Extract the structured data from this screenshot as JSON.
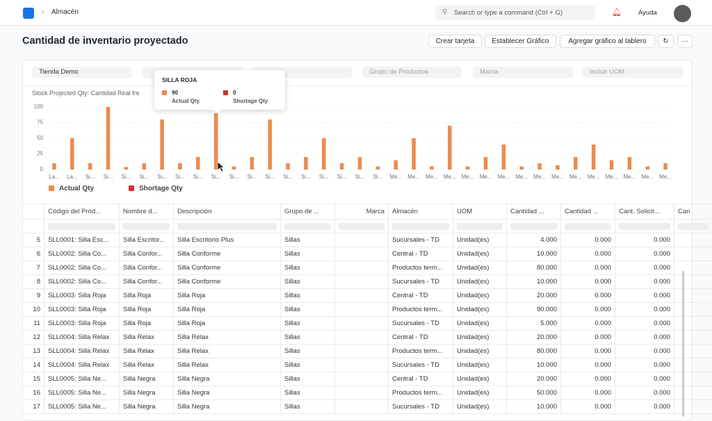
{
  "header": {
    "breadcrumb": "Almacén",
    "search": "Search or type a command (Ctrl + G)",
    "help": "Ayuda"
  },
  "page": {
    "title": "Cantidad de inventario proyectado",
    "buttons": [
      "Crear tarjeta",
      "Establecer Gráfico",
      "Agregar gráfico al tablero"
    ]
  },
  "filters": [
    "Tienda Demo",
    "Grupo de Productos",
    "Marca",
    "Incluir UOM"
  ],
  "chart_data": {
    "type": "bar",
    "subtitle": "Stock Projected Qty: Cantidad Real fre",
    "categories": [
      "La...",
      "La...",
      "Si...",
      "Si...",
      "Si...",
      "Si...",
      "Si...",
      "Si...",
      "Si...",
      "Si...",
      "Si...",
      "Si...",
      "Si...",
      "Si...",
      "Si...",
      "Si...",
      "Si...",
      "Si...",
      "Si...",
      "Me...",
      "Me...",
      "Me...",
      "Me...",
      "Me...",
      "Me...",
      "Me...",
      "Me...",
      "Me...",
      "Me...",
      "Me...",
      "Me...",
      "Me...",
      "Me...",
      "Me...",
      "Me..."
    ],
    "series": [
      {
        "name": "Actual Qty",
        "color": "#ee8a4e",
        "values": [
          10,
          50,
          10,
          100,
          4,
          10,
          80,
          10,
          20,
          90,
          5,
          20,
          80,
          10,
          20,
          50,
          10,
          20,
          5,
          15,
          50,
          5,
          70,
          5,
          20,
          40,
          5,
          10,
          7,
          20,
          40,
          15,
          20,
          5,
          10
        ]
      },
      {
        "name": "Shortage Qty",
        "color": "#d12f2f",
        "values": [
          0,
          0,
          0,
          0,
          0,
          0,
          0,
          0,
          0,
          0,
          0,
          0,
          0,
          0,
          0,
          0,
          0,
          0,
          0,
          0,
          0,
          0,
          0,
          0,
          0,
          0,
          0,
          0,
          0,
          0,
          0,
          0,
          0,
          0,
          0
        ]
      }
    ],
    "ylim": [
      0,
      100
    ],
    "yticks": [
      0,
      25,
      50,
      75,
      100
    ],
    "tooltip": {
      "title": "SILLA ROJA",
      "items": [
        {
          "value": 90,
          "label": "Actual Qty"
        },
        {
          "value": 0,
          "label": "Shortage Qty"
        }
      ]
    }
  },
  "table": {
    "columns": [
      "Código del Prod...",
      "Nombre d...",
      "Descripción",
      "Grupo de ...",
      "Marca",
      "Almacén",
      "UOM",
      "Cantidad ...",
      "Cantidad ...",
      "Cant. Solicit...",
      "Can"
    ],
    "rows": [
      [
        5,
        "SLL0001: Silla Esc...",
        "Silla Escritor...",
        "Silla Escritorio Plus",
        "Sillas",
        "Sucursales - TD",
        "Unidad(es)",
        "4.000",
        "0.000",
        "0.000"
      ],
      [
        6,
        "SLL0002: Silla Co...",
        "Silla Confor...",
        "Silla Conforme",
        "Sillas",
        "Central - TD",
        "Unidad(es)",
        "10.000",
        "0.000",
        "0.000"
      ],
      [
        7,
        "SLL0002: Silla Co...",
        "Silla Confor...",
        "Silla Conforme",
        "Sillas",
        "Productos term...",
        "Unidad(es)",
        "80.000",
        "0.000",
        "0.000"
      ],
      [
        8,
        "SLL0002: Silla Co...",
        "Silla Confor...",
        "Silla Conforme",
        "Sillas",
        "Sucursales - TD",
        "Unidad(es)",
        "10.000",
        "0.000",
        "0.000"
      ],
      [
        9,
        "SLL0003: Silla Roja",
        "Silla Roja",
        "Silla Roja",
        "Sillas",
        "Central - TD",
        "Unidad(es)",
        "20.000",
        "0.000",
        "0.000"
      ],
      [
        10,
        "SLL0003: Silla Roja",
        "Silla Roja",
        "Silla Roja",
        "Sillas",
        "Productos term...",
        "Unidad(es)",
        "90.000",
        "0.000",
        "0.000"
      ],
      [
        11,
        "SLL0003: Silla Roja",
        "Silla Roja",
        "Silla Roja",
        "Sillas",
        "Sucursales - TD",
        "Unidad(es)",
        "5.000",
        "0.000",
        "0.000"
      ],
      [
        12,
        "SLL0004: Silla Relax",
        "Silla Relax",
        "Silla Relax",
        "Sillas",
        "Central - TD",
        "Unidad(es)",
        "20.000",
        "0.000",
        "0.000"
      ],
      [
        13,
        "SLL0004: Silla Relax",
        "Silla Relax",
        "Silla Relax",
        "Sillas",
        "Productos term...",
        "Unidad(es)",
        "80.000",
        "0.000",
        "0.000"
      ],
      [
        14,
        "SLL0004: Silla Relax",
        "Silla Relax",
        "Silla Relax",
        "Sillas",
        "Sucursales - TD",
        "Unidad(es)",
        "10.000",
        "0.000",
        "0.000"
      ],
      [
        15,
        "SLL0005: Silla Ne...",
        "Silla Negra",
        "Silla Negra",
        "Sillas",
        "Central - TD",
        "Unidad(es)",
        "20.000",
        "0.000",
        "0.000"
      ],
      [
        16,
        "SLL0005: Silla Ne...",
        "Silla Negra",
        "Silla Negra",
        "Sillas",
        "Productos term...",
        "Unidad(es)",
        "50.000",
        "0.000",
        "0.000"
      ],
      [
        17,
        "SLL0005: Silla Ne...",
        "Silla Negra",
        "Silla Negra",
        "Sillas",
        "Sucursales - TD",
        "Unidad(es)",
        "10.000",
        "0.000",
        "0.000"
      ]
    ]
  }
}
